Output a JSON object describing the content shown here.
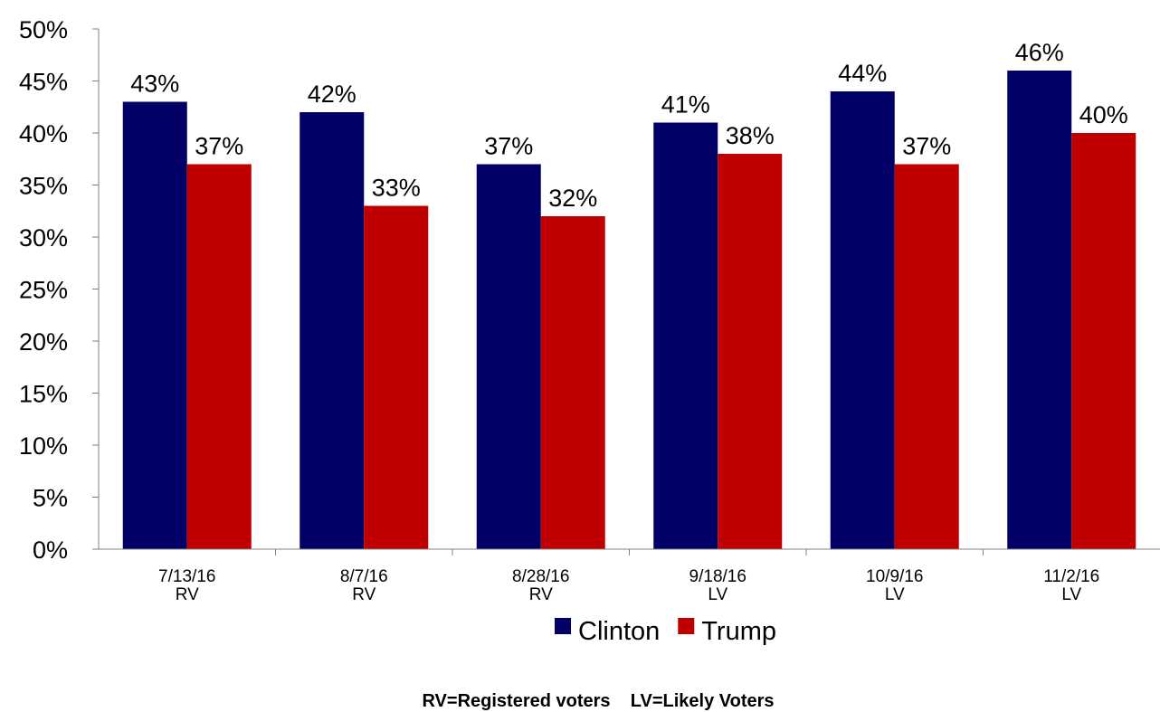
{
  "chart_data": {
    "type": "bar",
    "categories": [
      [
        "7/13/16",
        "RV"
      ],
      [
        "8/7/16",
        "RV"
      ],
      [
        "8/28/16",
        "RV"
      ],
      [
        "9/18/16",
        "LV"
      ],
      [
        "10/9/16",
        "LV"
      ],
      [
        "11/2/16",
        "LV"
      ]
    ],
    "series": [
      {
        "name": "Clinton",
        "color": "#000066",
        "values": [
          43,
          42,
          37,
          41,
          44,
          46
        ],
        "labels": [
          "43%",
          "42%",
          "37%",
          "41%",
          "44%",
          "46%"
        ]
      },
      {
        "name": "Trump",
        "color": "#C00000",
        "values": [
          37,
          33,
          32,
          38,
          37,
          40
        ],
        "labels": [
          "37%",
          "33%",
          "32%",
          "38%",
          "37%",
          "40%"
        ]
      }
    ],
    "yticks": [
      "0%",
      "5%",
      "10%",
      "15%",
      "20%",
      "25%",
      "30%",
      "35%",
      "40%",
      "45%",
      "50%"
    ],
    "ylim": [
      0,
      50
    ],
    "grid": false,
    "legend_position": "bottom",
    "footnote": "RV=Registered voters    LV=Likely Voters",
    "title": "",
    "xlabel": "",
    "ylabel": ""
  }
}
